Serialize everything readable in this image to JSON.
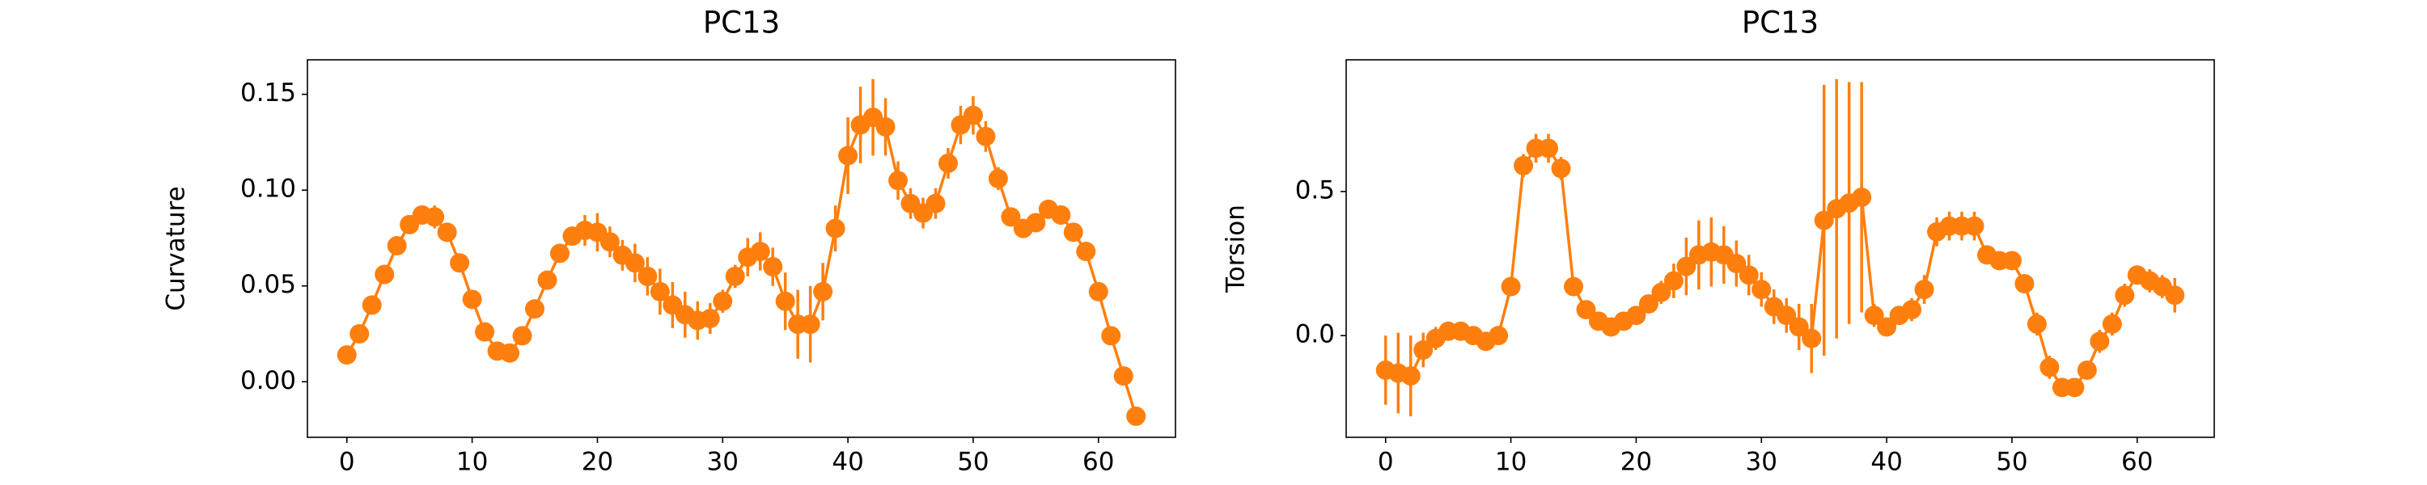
{
  "chart_data": [
    {
      "type": "errorbar",
      "title": "PC13",
      "y_label": "Curvature",
      "color": "#ff7f0e",
      "x": [
        0,
        1,
        2,
        3,
        4,
        5,
        6,
        7,
        8,
        9,
        10,
        11,
        12,
        13,
        14,
        15,
        16,
        17,
        18,
        19,
        20,
        21,
        22,
        23,
        24,
        25,
        26,
        27,
        28,
        29,
        30,
        31,
        32,
        33,
        34,
        35,
        36,
        37,
        38,
        39,
        40,
        41,
        42,
        43,
        44,
        45,
        46,
        47,
        48,
        49,
        50,
        51,
        52,
        53,
        54,
        55,
        56,
        57,
        58,
        59,
        60,
        61,
        62,
        63
      ],
      "series": [
        {
          "values": [
            0.014,
            0.025,
            0.04,
            0.056,
            0.071,
            0.082,
            0.087,
            0.086,
            0.078,
            0.062,
            0.043,
            0.026,
            0.016,
            0.015,
            0.024,
            0.038,
            0.053,
            0.067,
            0.076,
            0.079,
            0.078,
            0.073,
            0.066,
            0.062,
            0.055,
            0.047,
            0.04,
            0.035,
            0.032,
            0.033,
            0.042,
            0.055,
            0.065,
            0.068,
            0.06,
            0.042,
            0.03,
            0.03,
            0.047,
            0.08,
            0.118,
            0.134,
            0.138,
            0.133,
            0.105,
            0.093,
            0.088,
            0.093,
            0.114,
            0.134,
            0.139,
            0.128,
            0.106,
            0.086,
            0.08,
            0.083,
            0.09,
            0.087,
            0.078,
            0.068,
            0.047,
            0.024,
            0.003,
            -0.018
          ],
          "errors": [
            0.003,
            0.004,
            0.005,
            0.004,
            0.003,
            0.003,
            0.004,
            0.006,
            0.005,
            0.004,
            0.004,
            0.003,
            0.003,
            0.003,
            0.003,
            0.003,
            0.003,
            0.004,
            0.004,
            0.008,
            0.01,
            0.008,
            0.008,
            0.01,
            0.01,
            0.012,
            0.012,
            0.012,
            0.01,
            0.008,
            0.006,
            0.006,
            0.01,
            0.01,
            0.01,
            0.015,
            0.018,
            0.02,
            0.015,
            0.012,
            0.02,
            0.02,
            0.02,
            0.015,
            0.01,
            0.008,
            0.008,
            0.008,
            0.008,
            0.01,
            0.01,
            0.008,
            0.006,
            0.005,
            0.005,
            0.005,
            0.005,
            0.005,
            0.004,
            0.004,
            0.004,
            0.004,
            0.004,
            0.004
          ]
        }
      ],
      "xlim": [
        -3.15,
        66.15
      ],
      "xticks": [
        0,
        10,
        20,
        30,
        40,
        50,
        60
      ],
      "ylim": [
        -0.029,
        0.168
      ],
      "yticks": [
        {
          "value": 0,
          "label": "0.00"
        },
        0.05,
        {
          "value": 0.1,
          "label": "0.10"
        },
        0.15
      ]
    },
    {
      "type": "errorbar",
      "title": "PC13",
      "y_label": "Torsion",
      "color": "#ff7f0e",
      "x": [
        0,
        1,
        2,
        3,
        4,
        5,
        6,
        7,
        8,
        9,
        10,
        11,
        12,
        13,
        14,
        15,
        16,
        17,
        18,
        19,
        20,
        21,
        22,
        23,
        24,
        25,
        26,
        27,
        28,
        29,
        30,
        31,
        32,
        33,
        34,
        35,
        36,
        37,
        38,
        39,
        40,
        41,
        42,
        43,
        44,
        45,
        46,
        47,
        48,
        49,
        50,
        51,
        52,
        53,
        54,
        55,
        56,
        57,
        58,
        59,
        60,
        61,
        62,
        63
      ],
      "series": [
        {
          "values": [
            -0.12,
            -0.13,
            -0.14,
            -0.05,
            -0.01,
            0.015,
            0.015,
            0.0,
            -0.02,
            0.0,
            0.17,
            0.59,
            0.65,
            0.65,
            0.58,
            0.17,
            0.09,
            0.05,
            0.03,
            0.05,
            0.07,
            0.11,
            0.15,
            0.19,
            0.24,
            0.28,
            0.29,
            0.28,
            0.25,
            0.21,
            0.16,
            0.1,
            0.07,
            0.03,
            -0.01,
            0.4,
            0.44,
            0.46,
            0.48,
            0.07,
            0.03,
            0.07,
            0.09,
            0.16,
            0.36,
            0.38,
            0.38,
            0.38,
            0.28,
            0.26,
            0.26,
            0.18,
            0.04,
            -0.11,
            -0.18,
            -0.18,
            -0.12,
            -0.02,
            0.04,
            0.14,
            0.21,
            0.19,
            0.17,
            0.14
          ],
          "errors": [
            0.12,
            0.14,
            0.14,
            0.06,
            0.04,
            0.03,
            0.03,
            0.03,
            0.03,
            0.03,
            0.03,
            0.04,
            0.05,
            0.05,
            0.04,
            0.03,
            0.03,
            0.03,
            0.03,
            0.03,
            0.03,
            0.03,
            0.04,
            0.06,
            0.1,
            0.12,
            0.12,
            0.1,
            0.08,
            0.07,
            0.06,
            0.06,
            0.06,
            0.08,
            0.12,
            0.47,
            0.45,
            0.42,
            0.4,
            0.04,
            0.03,
            0.03,
            0.04,
            0.05,
            0.05,
            0.05,
            0.05,
            0.05,
            0.03,
            0.03,
            0.03,
            0.03,
            0.04,
            0.04,
            0.03,
            0.03,
            0.03,
            0.04,
            0.04,
            0.04,
            0.03,
            0.04,
            0.04,
            0.06
          ]
        }
      ],
      "xlim": [
        -3.15,
        66.15
      ],
      "xticks": [
        0,
        10,
        20,
        30,
        40,
        50,
        60
      ],
      "ylim": [
        -0.353,
        0.957
      ],
      "yticks": [
        {
          "value": 0,
          "label": "0.0"
        },
        0.5
      ]
    }
  ]
}
